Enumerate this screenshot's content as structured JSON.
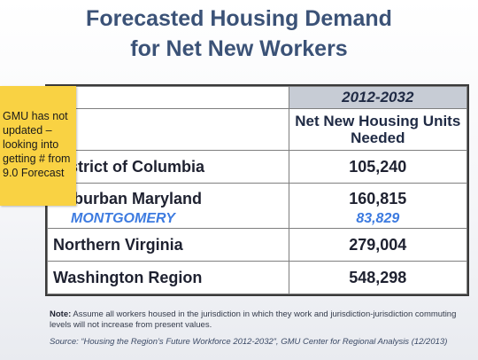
{
  "title_line1": "Forecasted Housing Demand",
  "title_line2": "for Net New Workers",
  "table": {
    "period": "2012-2032",
    "column_header": "Net New Housing Units Needed",
    "rows": [
      {
        "region": "District of Columbia",
        "value": "105,240"
      },
      {
        "region": "Suburban Maryland",
        "value": "160,815",
        "sub_region": "MONTGOMERY",
        "sub_value": "83,829"
      },
      {
        "region": "Northern Virginia",
        "value": "279,004"
      },
      {
        "region": "Washington Region",
        "value": "548,298"
      }
    ]
  },
  "sticky_note": {
    "text": "GMU has not updated – looking into getting # from 9.0 Forecast"
  },
  "note": {
    "label": "Note:",
    "text": "Assume all workers housed in the jurisdiction in which they work and jurisdiction-jurisdiction commuting levels will not increase from present values."
  },
  "source": "Source: “Housing the Region’s Future Workforce 2012-2032”, GMU Center for Regional Analysis (12/2013)",
  "colors": {
    "title": "#3b5277",
    "header_fill": "#c7ccd5",
    "montgomery": "#3d7be0",
    "sticky_note": "#f9d243"
  }
}
